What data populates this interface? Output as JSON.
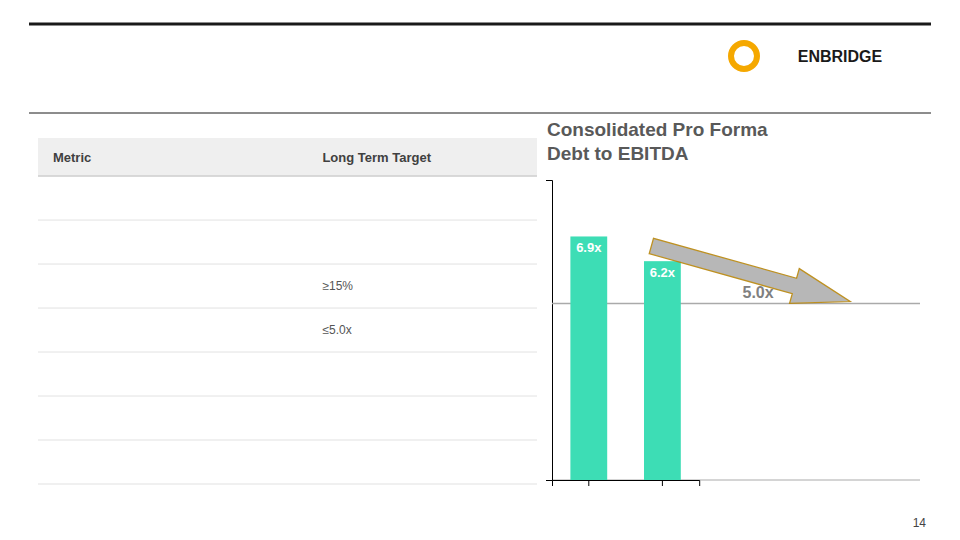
{
  "chart_data": {
    "type": "bar",
    "title": "Consolidated Pro Forma",
    "subtitle": "Debt to EBITDA",
    "categories": [
      null,
      null
    ],
    "values": [
      6.9,
      6.2
    ],
    "value_labels": [
      "6.9x",
      "6.2x"
    ],
    "data_labels": true,
    "color": "#3DDDB5",
    "ylim": [
      0,
      8.5
    ],
    "yticks": [],
    "tick_labels": false,
    "target_line": {
      "value": 5.0,
      "label": "5.0x"
    },
    "table": {
      "columns": [
        "Metric",
        "Long Term Target"
      ],
      "rows": [
        [
          null,
          null
        ],
        [
          null,
          null
        ],
        [
          null,
          "≥15%"
        ],
        [
          null,
          "≤5.0x"
        ],
        [
          null,
          null
        ],
        [
          null,
          null
        ],
        [
          null,
          null
        ]
      ]
    },
    "annotations": [
      "ENBRIDGE",
      "14"
    ]
  }
}
